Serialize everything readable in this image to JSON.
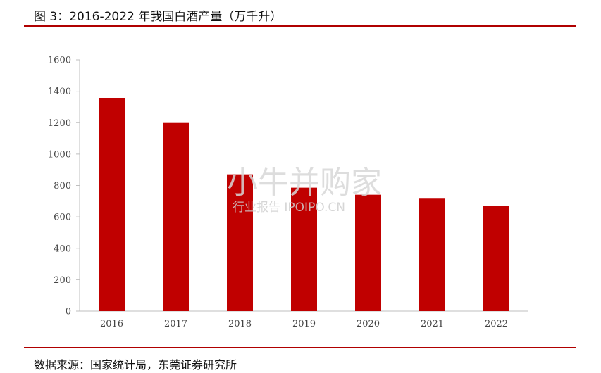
{
  "figure": {
    "title": "图 3：2016-2022 年我国白酒产量（万千升）",
    "source": "数据来源：国家统计局，东莞证券研究所"
  },
  "watermark": {
    "main": "小牛并购家",
    "sub": "行业报告  IPOIPO.CN"
  },
  "colors": {
    "bar": "#c00000",
    "rule": "#b00000"
  },
  "chart_data": {
    "type": "bar",
    "title": "2016-2022 年我国白酒产量（万千升）",
    "categories": [
      "2016",
      "2017",
      "2018",
      "2019",
      "2020",
      "2021",
      "2022"
    ],
    "values": [
      1358,
      1198,
      871,
      786,
      741,
      716,
      671
    ],
    "ylim": [
      0,
      1600
    ],
    "yticks": [
      0,
      200,
      400,
      600,
      800,
      1000,
      1200,
      1400,
      1600
    ],
    "grid": false,
    "legend": "none"
  }
}
